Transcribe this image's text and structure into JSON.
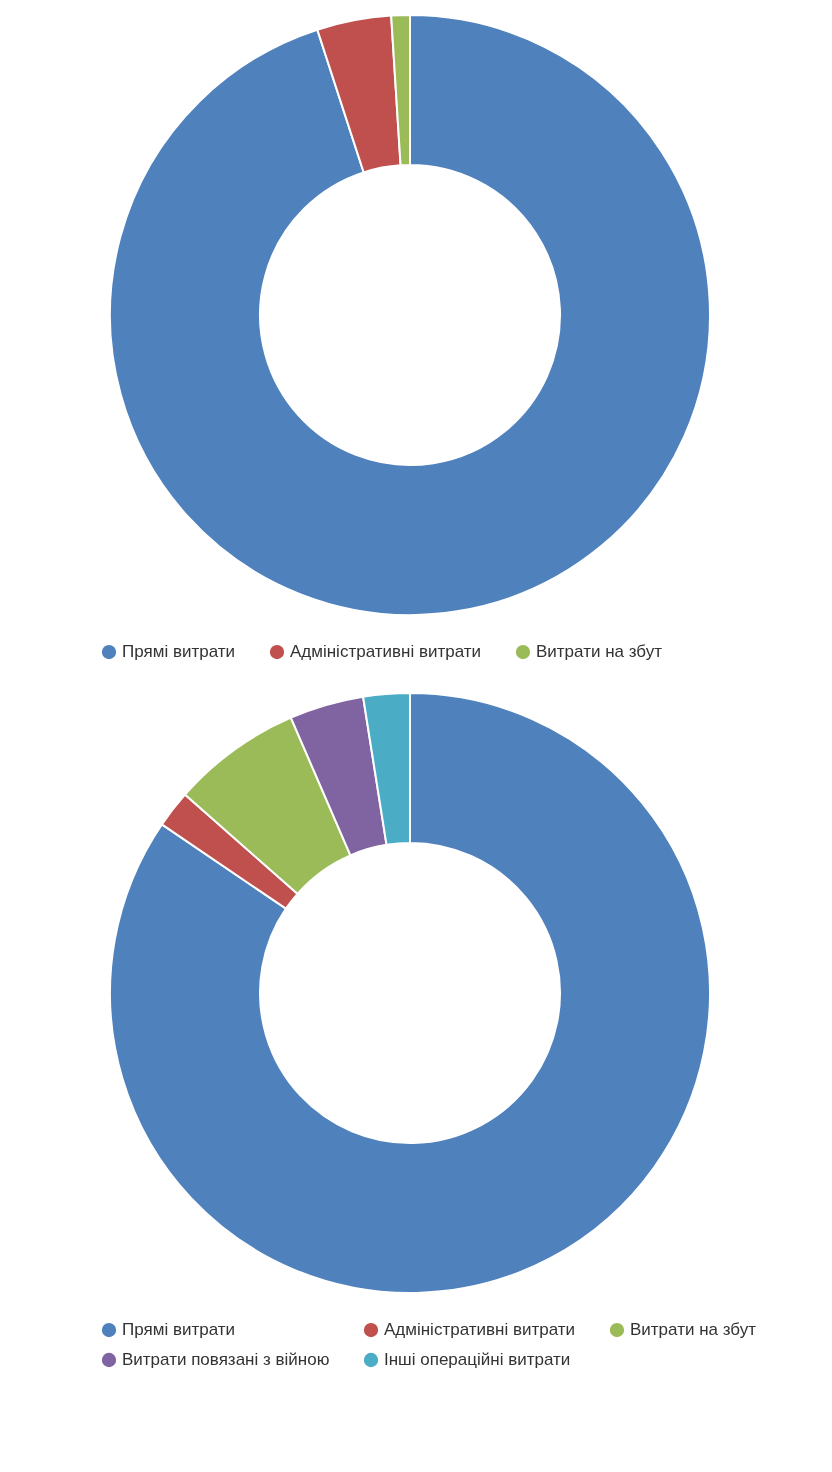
{
  "chart_data": [
    {
      "type": "donut",
      "categories": [
        "Прямі витрати",
        "Адміністративні витрати",
        "Витрати на збут"
      ],
      "values": [
        95,
        4,
        1
      ],
      "colors": [
        "#4f81bd",
        "#c0504d",
        "#9bbb59"
      ],
      "legend": "bottom"
    },
    {
      "type": "donut",
      "categories": [
        "Прямі витрати",
        "Адміністративні витрати",
        "Витрати на збут",
        "Витрати повязані з війною",
        "Інші операційні витрати"
      ],
      "values": [
        84.5,
        2,
        7,
        4,
        2.5
      ],
      "colors": [
        "#4f81bd",
        "#c0504d",
        "#9bbb59",
        "#8064a2",
        "#4bacc6"
      ],
      "legend": "bottom"
    }
  ]
}
